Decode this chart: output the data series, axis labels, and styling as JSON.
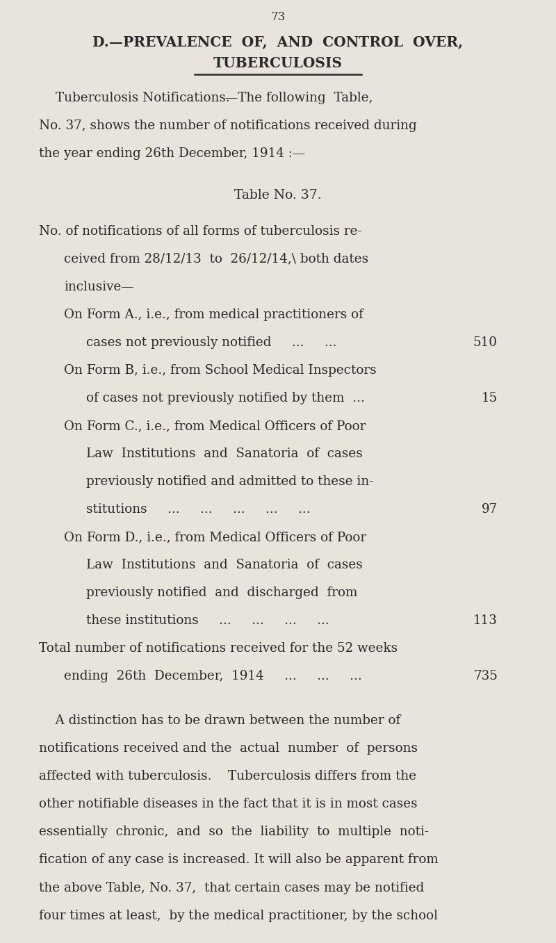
{
  "bg_color": "#e8e4dc",
  "text_color": "#2a2a2a",
  "page_number": "73",
  "title_line1": "D.—PREVALENCE  OF,  AND  CONTROL  OVER,",
  "title_line2": "TUBERCULOSIS",
  "intro_line1_sc": "Tuberculosis Notifications.",
  "intro_line1_rest": "—The following  Table,",
  "intro_line2": "No. 37, shows the number of notifications received during",
  "intro_line3": "the year ending 26th December, 1914 :—",
  "table_title": "Table No. 37.",
  "table_rows": [
    {
      "text": "No. of notifications of all forms of tuberculosis re-",
      "indent": 0,
      "value": ""
    },
    {
      "text": "ceived from 28/12/13  to  26/12/14,\\ both dates",
      "indent": 1,
      "value": ""
    },
    {
      "text": "inclusive—",
      "indent": 1,
      "value": ""
    },
    {
      "text": "On Form A., i.e., from medical practitioners of",
      "indent": 2,
      "value": ""
    },
    {
      "text": "cases not previously notified     ...     ...",
      "indent": 3,
      "value": "510"
    },
    {
      "text": "On Form B, i.e., from School Medical Inspectors",
      "indent": 2,
      "value": ""
    },
    {
      "text": "of cases not previously notified by them  ...",
      "indent": 3,
      "value": "15"
    },
    {
      "text": "On Form C., i.e., from Medical Officers of Poor",
      "indent": 2,
      "value": ""
    },
    {
      "text": "Law  Institutions  and  Sanatoria  of  cases",
      "indent": 3,
      "value": ""
    },
    {
      "text": "previously notified and admitted to these in-",
      "indent": 3,
      "value": ""
    },
    {
      "text": "stitutions     ...     ...     ...     ...     ...",
      "indent": 3,
      "value": "97"
    },
    {
      "text": "On Form D., i.e., from Medical Officers of Poor",
      "indent": 2,
      "value": ""
    },
    {
      "text": "Law  Institutions  and  Sanatoria  of  cases",
      "indent": 3,
      "value": ""
    },
    {
      "text": "previously notified  and  discharged  from",
      "indent": 3,
      "value": ""
    },
    {
      "text": "these institutions     ...     ...     ...     ...",
      "indent": 3,
      "value": "113"
    },
    {
      "text": "Total number of notifications received for the 52 weeks",
      "indent": 0,
      "value": ""
    },
    {
      "text": "ending  26th  December,  1914     ...     ...     ...",
      "indent": 1,
      "value": "735"
    }
  ],
  "bottom_para": [
    "    A distinction has to be drawn between the number of",
    "notifications received and the  actual  number  of  persons",
    "affected with tuberculosis.    Tuberculosis differs from the",
    "other notifiable diseases in the fact that it is in most cases",
    "essentially  chronic,  and  so  the  liability  to  multiple  noti-",
    "fication of any case is increased. It will also be apparent from",
    "the above Table, No. 37,  that certain cases may be notified",
    "four times at least,  by the medical practitioner, by the school"
  ],
  "indent_levels": [
    0.07,
    0.115,
    0.115,
    0.155
  ]
}
